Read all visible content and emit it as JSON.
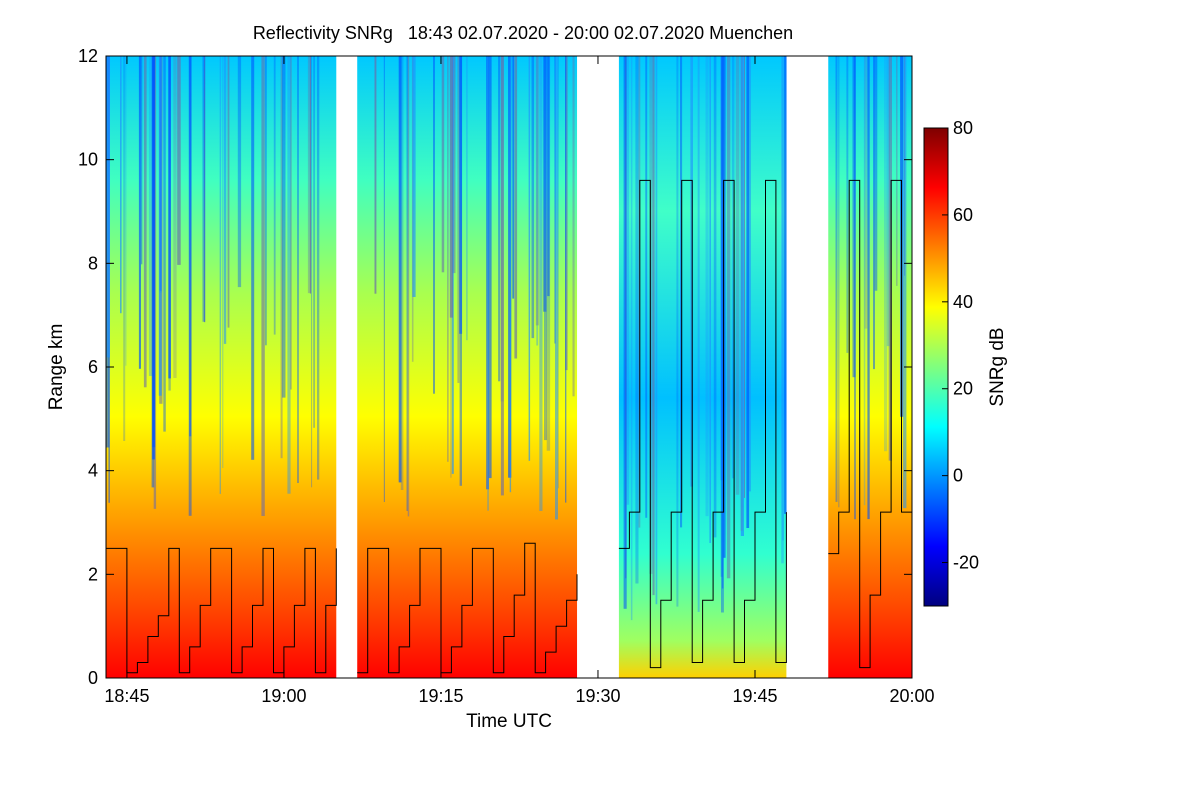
{
  "chart_data": {
    "type": "heatmap",
    "title": "Reflectivity SNRg   18:43 02.07.2020 - 20:00 02.07.2020 Muenchen",
    "xlabel": "Time UTC",
    "ylabel": "Range km",
    "colorbar_label": "SNRg dB",
    "x_range": [
      "18:43",
      "20:00"
    ],
    "x_ticks": [
      "18:45",
      "19:00",
      "19:15",
      "19:30",
      "19:45",
      "20:00"
    ],
    "ylim": [
      0,
      12
    ],
    "y_ticks": [
      "0",
      "2",
      "4",
      "6",
      "8",
      "10",
      "12"
    ],
    "color_range": [
      -30,
      80
    ],
    "color_ticks": [
      "-20",
      "0",
      "20",
      "40",
      "60",
      "80"
    ],
    "colormap": [
      "#00007f",
      "#0000ff",
      "#007fff",
      "#00ffff",
      "#7fff7f",
      "#ffff00",
      "#ff7f00",
      "#ff0000",
      "#7f0000"
    ],
    "data_segments": [
      {
        "start": "18:43",
        "end": "19:05"
      },
      {
        "start": "19:07",
        "end": "19:28"
      },
      {
        "start": "19:32",
        "end": "19:48"
      },
      {
        "start": "19:52",
        "end": "20:00"
      }
    ],
    "profile_series": [
      {
        "x": [
          "18:43",
          "18:44",
          "18:45",
          "18:46",
          "18:47",
          "18:48",
          "18:49",
          "18:50",
          "18:51",
          "18:52",
          "18:53",
          "18:54",
          "18:55",
          "18:56",
          "18:57",
          "18:58",
          "18:59",
          "19:00",
          "19:01",
          "19:02",
          "19:03",
          "19:04",
          "19:05"
        ],
        "y": [
          2.5,
          2.5,
          0.1,
          0.3,
          0.8,
          1.2,
          2.5,
          0.1,
          0.6,
          1.4,
          2.5,
          2.5,
          0.1,
          0.6,
          1.4,
          2.5,
          0.1,
          0.6,
          1.4,
          2.5,
          0.1,
          1.4,
          2.5
        ]
      },
      {
        "x": [
          "19:07",
          "19:08",
          "19:09",
          "19:10",
          "19:11",
          "19:12",
          "19:13",
          "19:14",
          "19:15",
          "19:16",
          "19:17",
          "19:18",
          "19:19",
          "19:20",
          "19:21",
          "19:22",
          "19:23",
          "19:24",
          "19:25",
          "19:26",
          "19:27",
          "19:28"
        ],
        "y": [
          0.1,
          2.5,
          2.5,
          0.1,
          0.6,
          1.4,
          2.5,
          2.5,
          0.1,
          0.6,
          1.4,
          2.5,
          2.5,
          0.1,
          0.8,
          1.6,
          2.6,
          0.1,
          0.5,
          1.0,
          1.5,
          2.0
        ]
      },
      {
        "x": [
          "19:32",
          "19:33",
          "19:34",
          "19:35",
          "19:36",
          "19:37",
          "19:38",
          "19:39",
          "19:40",
          "19:41",
          "19:42",
          "19:43",
          "19:44",
          "19:45",
          "19:46",
          "19:47",
          "19:48"
        ],
        "y": [
          2.5,
          3.2,
          9.6,
          0.2,
          1.5,
          3.2,
          9.6,
          0.3,
          1.5,
          3.2,
          9.6,
          0.3,
          1.5,
          3.2,
          9.6,
          0.3,
          3.2
        ]
      },
      {
        "x": [
          "19:52",
          "19:53",
          "19:54",
          "19:55",
          "19:56",
          "19:57",
          "19:58",
          "19:59",
          "20:00"
        ],
        "y": [
          2.4,
          3.2,
          9.6,
          0.2,
          1.6,
          3.2,
          9.6,
          3.2,
          0.2
        ]
      }
    ]
  }
}
